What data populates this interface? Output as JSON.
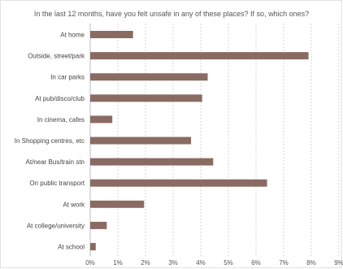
{
  "chart_data": {
    "type": "bar",
    "orientation": "horizontal",
    "title": "In the last 12 months, have you felt unsafe in any of these places? If so, which ones?",
    "categories": [
      "At home",
      "Outside, street/park",
      "In car parks",
      "At pub/disco/club",
      "In cinema, cafes",
      "In Shopping centres, etc",
      "At/near Bus/train stn",
      "On public transport",
      "At work",
      "At college/university",
      "At school"
    ],
    "values": [
      1.55,
      7.9,
      4.25,
      4.05,
      0.8,
      3.65,
      4.45,
      6.4,
      1.95,
      0.6,
      0.2
    ],
    "xlim": [
      0,
      9
    ],
    "xticks": [
      "0%",
      "1%",
      "2%",
      "3%",
      "4%",
      "5%",
      "6%",
      "7%",
      "8%",
      "9%"
    ],
    "grid": true,
    "bar_color": "#8a6b63",
    "grid_color": "#d6d6d6"
  }
}
